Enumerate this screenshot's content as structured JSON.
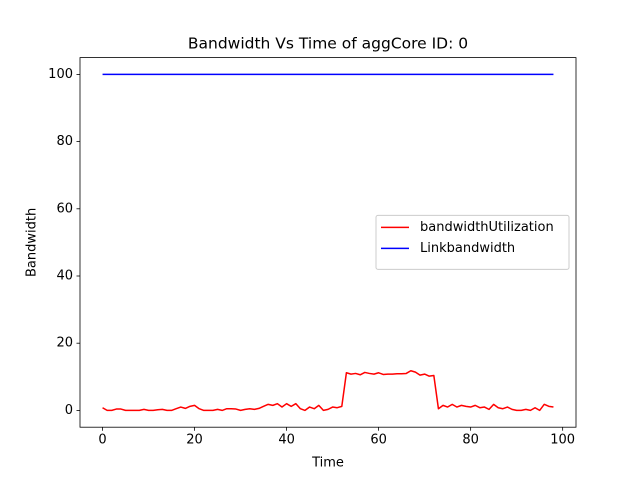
{
  "chart_data": {
    "type": "line",
    "title": "Bandwidth Vs Time of aggCore ID: 0",
    "xlabel": "Time",
    "ylabel": "Bandwidth",
    "series": [
      {
        "name": "bandwidthUtilization",
        "color": "#ff0000",
        "x": [
          0,
          1,
          2,
          3,
          4,
          5,
          6,
          7,
          8,
          9,
          10,
          11,
          12,
          13,
          14,
          15,
          16,
          17,
          18,
          19,
          20,
          21,
          22,
          23,
          24,
          25,
          26,
          27,
          28,
          29,
          30,
          31,
          32,
          33,
          34,
          35,
          36,
          37,
          38,
          39,
          40,
          41,
          42,
          43,
          44,
          45,
          46,
          47,
          48,
          49,
          50,
          51,
          52,
          53,
          54,
          55,
          56,
          57,
          58,
          59,
          60,
          61,
          62,
          63,
          64,
          65,
          66,
          67,
          68,
          69,
          70,
          71,
          72,
          73,
          74,
          75,
          76,
          77,
          78,
          79,
          80,
          81,
          82,
          83,
          84,
          85,
          86,
          87,
          88,
          89,
          90,
          91,
          92,
          93,
          94,
          95,
          96,
          97,
          98
        ],
        "values": [
          0.8,
          0,
          0,
          0.4,
          0.4,
          0,
          0,
          0,
          0,
          0.3,
          0,
          0,
          0.2,
          0.3,
          0,
          0,
          0.5,
          1.0,
          0.6,
          1.2,
          1.5,
          0.5,
          0,
          0,
          0,
          0.3,
          0,
          0.5,
          0.5,
          0.4,
          0,
          0.3,
          0.5,
          0.3,
          0.6,
          1.2,
          1.8,
          1.5,
          2.0,
          1.0,
          2.0,
          1.2,
          2.0,
          0.5,
          0,
          1.0,
          0.5,
          1.5,
          0,
          0.3,
          1.0,
          0.8,
          1.2,
          11.2,
          10.8,
          11.0,
          10.6,
          11.3,
          11.0,
          10.8,
          11.2,
          10.7,
          10.8,
          10.8,
          10.9,
          10.9,
          11.0,
          11.8,
          11.4,
          10.5,
          10.8,
          10.2,
          10.4,
          0.5,
          1.5,
          1.0,
          1.8,
          1.0,
          1.5,
          1.2,
          1.0,
          1.5,
          0.8,
          1.0,
          0.3,
          1.8,
          0.8,
          0.5,
          1.0,
          0.3,
          0,
          0,
          0.3,
          0,
          0.8,
          0,
          1.8,
          1.2,
          1.0
        ]
      },
      {
        "name": "Linkbandwidth",
        "color": "#0000ff",
        "x": [
          0,
          98
        ],
        "values": [
          100,
          100
        ]
      }
    ],
    "xlim": [
      -4.9,
      102.9
    ],
    "ylim": [
      -5,
      105
    ],
    "xticks": [
      0,
      20,
      40,
      60,
      80,
      100
    ],
    "yticks": [
      0,
      20,
      40,
      60,
      80,
      100
    ],
    "legend": "center right",
    "grid": false
  }
}
